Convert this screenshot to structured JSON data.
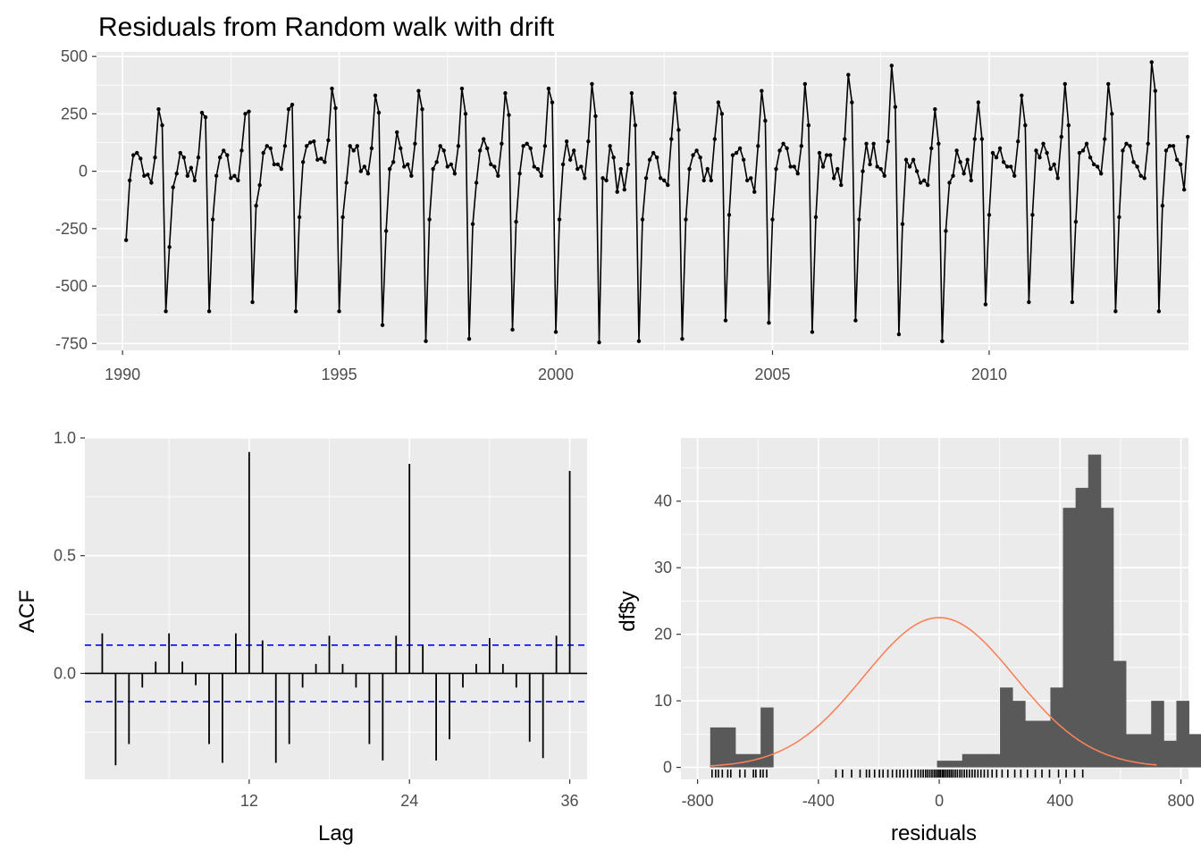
{
  "chart_data": [
    {
      "type": "line",
      "title": "Residuals from Random walk with drift",
      "xlabel": "",
      "ylabel": "",
      "xlim": [
        1989.4,
        2014.6
      ],
      "ylim": [
        -780,
        520
      ],
      "x_ticks": [
        "1990",
        "1995",
        "2000",
        "2005",
        "2010"
      ],
      "y_ticks": [
        "500",
        "250",
        "0",
        "-250",
        "-500",
        "-750"
      ],
      "x_start": 1990.0833,
      "x_step": 0.0833333,
      "points": true,
      "color": "#000000",
      "values": [
        -300,
        -40,
        70,
        80,
        55,
        -20,
        -15,
        -50,
        60,
        270,
        200,
        -610,
        -330,
        -70,
        -10,
        80,
        60,
        -20,
        15,
        -40,
        60,
        255,
        235,
        -610,
        -210,
        -20,
        60,
        90,
        70,
        -30,
        -20,
        -40,
        90,
        250,
        260,
        -570,
        -150,
        -60,
        80,
        110,
        100,
        30,
        30,
        10,
        110,
        270,
        290,
        -610,
        -200,
        40,
        110,
        125,
        130,
        50,
        55,
        40,
        135,
        360,
        275,
        -610,
        -200,
        -50,
        110,
        90,
        110,
        0,
        20,
        -10,
        100,
        330,
        255,
        -670,
        -260,
        10,
        40,
        170,
        100,
        20,
        30,
        -20,
        120,
        350,
        270,
        -740,
        -210,
        10,
        40,
        110,
        90,
        20,
        30,
        -10,
        110,
        360,
        250,
        -730,
        -230,
        -50,
        90,
        140,
        100,
        30,
        20,
        -20,
        120,
        340,
        245,
        -690,
        -220,
        -10,
        110,
        120,
        100,
        20,
        10,
        -20,
        110,
        360,
        300,
        -700,
        -210,
        30,
        130,
        50,
        90,
        10,
        20,
        -30,
        130,
        380,
        240,
        -745,
        -30,
        -40,
        110,
        60,
        -90,
        10,
        -80,
        30,
        340,
        200,
        -740,
        -210,
        -30,
        50,
        80,
        60,
        -30,
        -40,
        -60,
        140,
        340,
        180,
        -730,
        -210,
        10,
        70,
        90,
        60,
        -40,
        10,
        -40,
        140,
        300,
        250,
        -650,
        -190,
        70,
        80,
        100,
        50,
        -40,
        -30,
        -90,
        110,
        350,
        220,
        -660,
        -210,
        10,
        90,
        120,
        100,
        20,
        20,
        -10,
        110,
        380,
        200,
        -700,
        -200,
        80,
        20,
        70,
        70,
        -30,
        10,
        -60,
        140,
        420,
        300,
        -650,
        -210,
        0,
        120,
        30,
        120,
        20,
        10,
        -20,
        130,
        460,
        280,
        -710,
        -230,
        50,
        20,
        50,
        0,
        -50,
        -40,
        -60,
        100,
        270,
        120,
        -740,
        -260,
        -50,
        -20,
        90,
        40,
        -10,
        50,
        -40,
        140,
        300,
        140,
        -580,
        -190,
        80,
        60,
        100,
        40,
        20,
        20,
        -20,
        130,
        330,
        200,
        -570,
        -190,
        90,
        60,
        120,
        80,
        10,
        30,
        -30,
        150,
        380,
        200,
        -570,
        -220,
        80,
        90,
        120,
        60,
        30,
        20,
        -10,
        140,
        380,
        250,
        -610,
        -200,
        90,
        120,
        110,
        40,
        20,
        -20,
        -30,
        120,
        475,
        350,
        -610,
        -150,
        90,
        110,
        110,
        50,
        30,
        -80,
        150
      ]
    },
    {
      "type": "bar",
      "title": "",
      "xlabel": "Lag",
      "ylabel": "ACF",
      "xlim": [
        -0.3,
        37.3
      ],
      "ylim": [
        -0.45,
        1.0
      ],
      "x_ticks": [
        "12",
        "24",
        "36"
      ],
      "y_ticks": [
        "1.0",
        "0.5",
        "0.0"
      ],
      "lags": [
        1,
        2,
        3,
        4,
        5,
        6,
        7,
        8,
        9,
        10,
        11,
        12,
        13,
        14,
        15,
        16,
        17,
        18,
        19,
        20,
        21,
        22,
        23,
        24,
        25,
        26,
        27,
        28,
        29,
        30,
        31,
        32,
        33,
        34,
        35,
        36
      ],
      "values": [
        0.17,
        -0.39,
        -0.3,
        -0.06,
        0.05,
        0.17,
        0.05,
        -0.05,
        -0.3,
        -0.38,
        0.17,
        0.94,
        0.14,
        -0.38,
        -0.3,
        -0.06,
        0.04,
        0.16,
        0.04,
        -0.06,
        -0.3,
        -0.37,
        0.16,
        0.89,
        0.12,
        -0.37,
        -0.28,
        -0.06,
        0.04,
        0.15,
        0.04,
        -0.06,
        -0.29,
        -0.36,
        0.16,
        0.86
      ],
      "confidence_bound": 0.12,
      "bound_color": "#0000ff"
    },
    {
      "type": "bar",
      "title": "",
      "xlabel": "residuals",
      "ylabel": "df$y",
      "xlim": [
        -855,
        825
      ],
      "ylim": [
        -1.8,
        49.5
      ],
      "x_ticks": [
        "-800",
        "-400",
        "0",
        "400",
        "800"
      ],
      "y_ticks": [
        "40",
        "30",
        "20",
        "10",
        "0"
      ],
      "bin_width": 41.7,
      "bins_from": -758,
      "counts": [
        6,
        6,
        2,
        2,
        9,
        0,
        0,
        0,
        0,
        0,
        0,
        0,
        0,
        0,
        0,
        0,
        0,
        0,
        1,
        1,
        2,
        2,
        2,
        12,
        10,
        7,
        7,
        12,
        39,
        42,
        47,
        39,
        16,
        5,
        5,
        10,
        4,
        10,
        5,
        1,
        1,
        1
      ],
      "bar_color": "#595959",
      "normal_curve": {
        "mean": 0,
        "sd": 250,
        "peak": 22.5,
        "from": -760,
        "to": 720,
        "color": "#f8825a"
      },
      "rug": [
        -752,
        -740,
        -731,
        -718,
        -700,
        -690,
        -660,
        -643,
        -615,
        -607,
        -592,
        -583,
        -571,
        -342,
        -320,
        -290,
        -262,
        -241,
        -231,
        -214,
        -198,
        -186,
        -170,
        -155,
        -141,
        -130,
        -118,
        -105,
        -92,
        -80,
        -70,
        -61,
        -53,
        -45,
        -38,
        -31,
        -24,
        -17,
        -11,
        -5,
        0,
        5,
        11,
        16,
        22,
        28,
        34,
        40,
        46,
        53,
        60,
        68,
        75,
        83,
        91,
        100,
        109,
        118,
        128,
        138,
        149,
        161,
        175,
        190,
        208,
        227,
        250,
        270,
        292,
        318,
        340,
        365,
        395,
        420,
        448,
        475
      ]
    }
  ]
}
